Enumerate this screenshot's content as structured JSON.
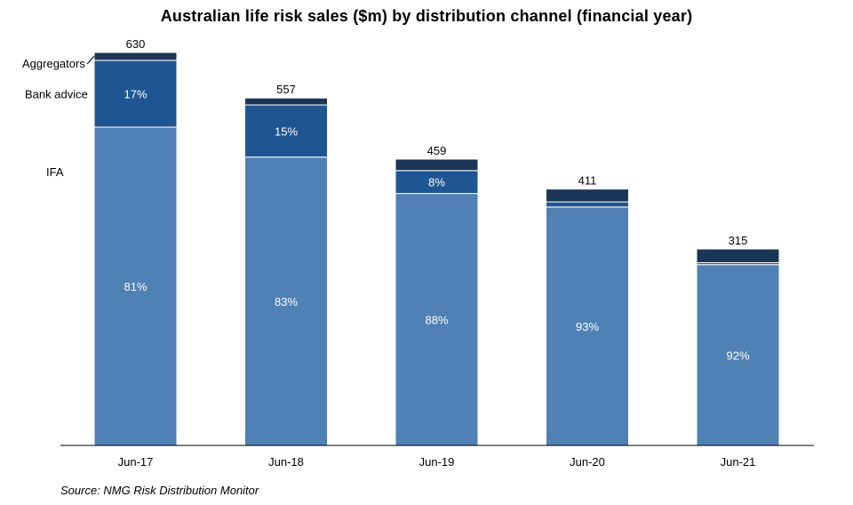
{
  "chart_data": {
    "type": "bar",
    "stacked": true,
    "title": "Australian  life risk sales ($m) by distribution  channel  (financial year)",
    "source": "Source: NMG Risk Distribution Monitor",
    "categories": [
      "Jun-17",
      "Jun-18",
      "Jun-19",
      "Jun-20",
      "Jun-21"
    ],
    "totals": [
      630,
      557,
      459,
      411,
      315
    ],
    "series": [
      {
        "name": "IFA",
        "share": [
          0.81,
          0.83,
          0.88,
          0.93,
          0.92
        ],
        "labels": [
          "81%",
          "83%",
          "88%",
          "93%",
          "92%"
        ],
        "color": "#4F81B5"
      },
      {
        "name": "Bank advice",
        "share": [
          0.17,
          0.15,
          0.08,
          0.02,
          0.01
        ],
        "labels": [
          "17%",
          "15%",
          "8%",
          "",
          ""
        ],
        "color": "#1F5592"
      },
      {
        "name": "Aggregators",
        "share": [
          0.02,
          0.02,
          0.04,
          0.05,
          0.07
        ],
        "labels": [
          "",
          "",
          "",
          "",
          ""
        ],
        "color": "#1B3556"
      }
    ],
    "ylim": [
      0,
      700
    ],
    "grid": false,
    "legend": "left, inline series labels"
  }
}
